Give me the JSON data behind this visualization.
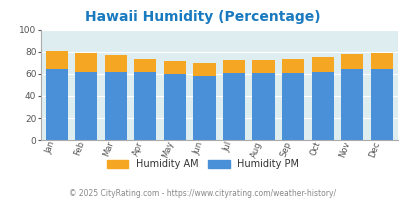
{
  "title": "Hawaii Humidity (Percentage)",
  "months": [
    "Jan",
    "Feb",
    "Mar",
    "Apr",
    "May",
    "Jun",
    "Jul",
    "Aug",
    "Sep",
    "Oct",
    "Nov",
    "Dec"
  ],
  "humidity_pm": [
    65,
    62,
    62,
    62,
    60,
    58,
    61,
    61,
    61,
    62,
    65,
    65
  ],
  "humidity_am": [
    81,
    79,
    77,
    74,
    72,
    70,
    73,
    73,
    74,
    75,
    78,
    79
  ],
  "color_pm": "#4a90d9",
  "color_am": "#f5a623",
  "color_bg": "#deeef0",
  "ylim": [
    0,
    100
  ],
  "yticks": [
    0,
    20,
    40,
    60,
    80,
    100
  ],
  "title_color": "#1a7abf",
  "title_fontsize": 10,
  "legend_label_am": "Humidity AM",
  "legend_label_pm": "Humidity PM",
  "legend_text_color": "#333333",
  "footer_text": "© 2025 CityRating.com - https://www.cityrating.com/weather-history/",
  "footer_color": "#888888",
  "footer_fontsize": 5.5,
  "bar_width": 0.75
}
